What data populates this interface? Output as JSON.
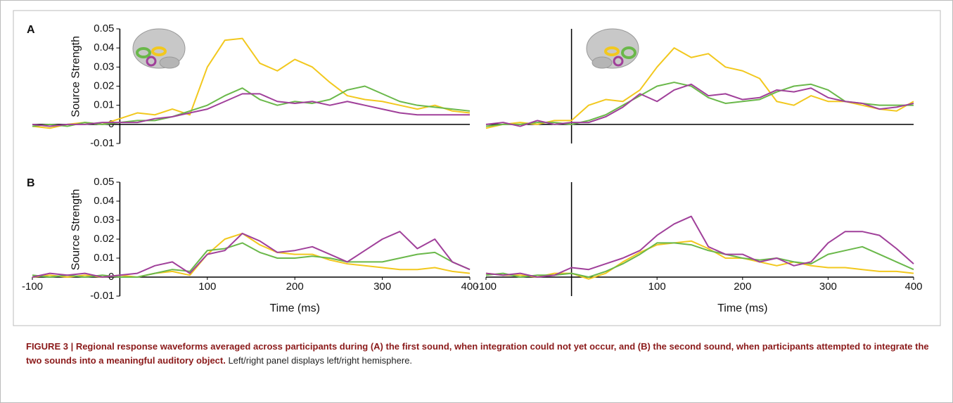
{
  "chart_data": [
    {
      "type": "line",
      "panel": "A",
      "ylabel": "Source Strength",
      "x": [
        -100,
        -80,
        -60,
        -40,
        -20,
        0,
        20,
        40,
        60,
        80,
        100,
        120,
        140,
        160,
        180,
        200,
        220,
        240,
        260,
        280,
        300,
        320,
        340,
        360,
        380,
        400
      ],
      "xlim": [
        -100,
        400
      ],
      "ylim": [
        -0.01,
        0.05
      ],
      "yticks": [
        -0.01,
        0,
        0.01,
        0.02,
        0.03,
        0.04,
        0.05
      ],
      "series": [
        {
          "color": "#f2c81e",
          "values": [
            -0.001,
            -0.002,
            0.0,
            0.001,
            0.0,
            0.003,
            0.006,
            0.005,
            0.008,
            0.005,
            0.03,
            0.044,
            0.045,
            0.032,
            0.028,
            0.034,
            0.03,
            0.022,
            0.015,
            0.013,
            0.012,
            0.01,
            0.008,
            0.01,
            0.007,
            0.006
          ]
        },
        {
          "color": "#6ab84a",
          "values": [
            -0.001,
            0.0,
            -0.001,
            0.001,
            0.0,
            0.001,
            0.002,
            0.002,
            0.004,
            0.007,
            0.01,
            0.015,
            0.019,
            0.013,
            0.01,
            0.012,
            0.011,
            0.013,
            0.018,
            0.02,
            0.016,
            0.012,
            0.01,
            0.009,
            0.008,
            0.007
          ]
        },
        {
          "color": "#a0409a",
          "values": [
            0.0,
            -0.001,
            0.0,
            0.0,
            0.001,
            0.001,
            0.001,
            0.003,
            0.004,
            0.006,
            0.008,
            0.012,
            0.016,
            0.016,
            0.012,
            0.011,
            0.012,
            0.01,
            0.012,
            0.01,
            0.008,
            0.006,
            0.005,
            0.005,
            0.005,
            0.005
          ]
        }
      ]
    },
    {
      "type": "line",
      "x": [
        -100,
        -80,
        -60,
        -40,
        -20,
        0,
        20,
        40,
        60,
        80,
        100,
        120,
        140,
        160,
        180,
        200,
        220,
        240,
        260,
        280,
        300,
        320,
        340,
        360,
        380,
        400
      ],
      "xlim": [
        -100,
        400
      ],
      "ylim": [
        -0.01,
        0.05
      ],
      "series": [
        {
          "color": "#f2c81e",
          "values": [
            -0.002,
            0.0,
            0.001,
            0.0,
            0.002,
            0.002,
            0.01,
            0.013,
            0.012,
            0.018,
            0.03,
            0.04,
            0.035,
            0.037,
            0.03,
            0.028,
            0.024,
            0.012,
            0.01,
            0.015,
            0.012,
            0.012,
            0.01,
            0.008,
            0.007,
            0.012
          ]
        },
        {
          "color": "#6ab84a",
          "values": [
            -0.001,
            0.0,
            0.0,
            0.001,
            0.001,
            0.0,
            0.002,
            0.005,
            0.01,
            0.015,
            0.02,
            0.022,
            0.02,
            0.014,
            0.011,
            0.012,
            0.013,
            0.017,
            0.02,
            0.021,
            0.018,
            0.012,
            0.011,
            0.01,
            0.01,
            0.01
          ]
        },
        {
          "color": "#a0409a",
          "values": [
            0.0,
            0.001,
            -0.001,
            0.002,
            0.0,
            0.001,
            0.001,
            0.004,
            0.009,
            0.016,
            0.012,
            0.018,
            0.021,
            0.015,
            0.016,
            0.013,
            0.014,
            0.018,
            0.017,
            0.019,
            0.014,
            0.012,
            0.011,
            0.008,
            0.009,
            0.011
          ]
        }
      ]
    },
    {
      "type": "line",
      "panel": "B",
      "ylabel": "Source Strength",
      "xlabel": "Time (ms)",
      "x": [
        -100,
        -80,
        -60,
        -40,
        -20,
        0,
        20,
        40,
        60,
        80,
        100,
        120,
        140,
        160,
        180,
        200,
        220,
        240,
        260,
        280,
        300,
        320,
        340,
        360,
        380,
        400
      ],
      "xlim": [
        -100,
        400
      ],
      "ylim": [
        -0.01,
        0.05
      ],
      "yticks": [
        -0.01,
        0,
        0.01,
        0.02,
        0.03,
        0.04,
        0.05
      ],
      "xticks": [
        -100,
        100,
        200,
        300,
        400
      ],
      "series": [
        {
          "color": "#f2c81e",
          "values": [
            0.0,
            0.001,
            0.0,
            0.001,
            0.0,
            0.001,
            0.0,
            0.002,
            0.003,
            0.001,
            0.012,
            0.02,
            0.023,
            0.017,
            0.013,
            0.012,
            0.012,
            0.009,
            0.007,
            0.006,
            0.005,
            0.004,
            0.004,
            0.005,
            0.003,
            0.002
          ]
        },
        {
          "color": "#6ab84a",
          "values": [
            0.001,
            0.0,
            0.001,
            0.0,
            0.001,
            0.0,
            0.0,
            0.002,
            0.004,
            0.003,
            0.014,
            0.015,
            0.018,
            0.013,
            0.01,
            0.01,
            0.011,
            0.01,
            0.008,
            0.008,
            0.008,
            0.01,
            0.012,
            0.013,
            0.008,
            0.004
          ]
        },
        {
          "color": "#a0409a",
          "values": [
            0.0,
            0.002,
            0.001,
            0.002,
            0.0,
            0.001,
            0.002,
            0.006,
            0.008,
            0.002,
            0.012,
            0.014,
            0.023,
            0.019,
            0.013,
            0.014,
            0.016,
            0.012,
            0.008,
            0.014,
            0.02,
            0.024,
            0.015,
            0.02,
            0.008,
            0.004
          ]
        }
      ]
    },
    {
      "type": "line",
      "xlabel": "Time (ms)",
      "x": [
        -100,
        -80,
        -60,
        -40,
        -20,
        0,
        20,
        40,
        60,
        80,
        100,
        120,
        140,
        160,
        180,
        200,
        220,
        240,
        260,
        280,
        300,
        320,
        340,
        360,
        380,
        400
      ],
      "xlim": [
        -100,
        400
      ],
      "ylim": [
        -0.01,
        0.05
      ],
      "xticks": [
        -100,
        100,
        200,
        300,
        400
      ],
      "series": [
        {
          "color": "#f2c81e",
          "values": [
            0.002,
            0.001,
            0.001,
            0.0,
            0.002,
            0.002,
            -0.001,
            0.002,
            0.008,
            0.013,
            0.017,
            0.018,
            0.019,
            0.015,
            0.01,
            0.01,
            0.008,
            0.006,
            0.008,
            0.006,
            0.005,
            0.005,
            0.004,
            0.003,
            0.003,
            0.002
          ]
        },
        {
          "color": "#6ab84a",
          "values": [
            0.001,
            0.002,
            0.0,
            0.001,
            0.001,
            0.002,
            0.0,
            0.003,
            0.007,
            0.012,
            0.018,
            0.018,
            0.017,
            0.014,
            0.012,
            0.01,
            0.009,
            0.01,
            0.008,
            0.007,
            0.012,
            0.014,
            0.016,
            0.012,
            0.008,
            0.004
          ]
        },
        {
          "color": "#a0409a",
          "values": [
            0.002,
            0.001,
            0.002,
            0.0,
            0.001,
            0.005,
            0.004,
            0.007,
            0.01,
            0.014,
            0.022,
            0.028,
            0.032,
            0.016,
            0.012,
            0.012,
            0.008,
            0.01,
            0.006,
            0.008,
            0.018,
            0.024,
            0.024,
            0.022,
            0.015,
            0.007
          ]
        }
      ]
    }
  ],
  "caption": {
    "bold": "FIGURE 3 | Regional response waveforms averaged across participants during (A) the first sound, when integration could not yet occur, and (B) the second sound, when participants attempted to integrate the two sounds into a meaningful auditory object.",
    "text": " Left/right panel displays left/right hemisphere."
  }
}
